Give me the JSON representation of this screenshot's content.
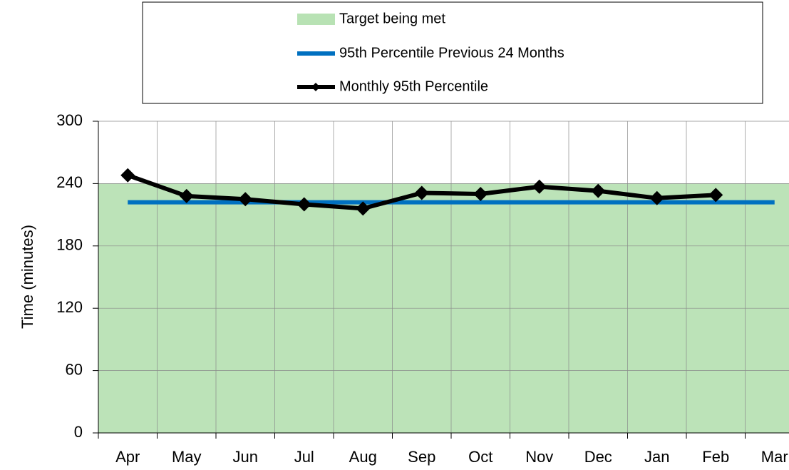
{
  "chart_data": {
    "type": "line",
    "y_label": "Time (minutes)",
    "categories": [
      "Apr",
      "May",
      "Jun",
      "Jul",
      "Aug",
      "Sep",
      "Oct",
      "Nov",
      "Dec",
      "Jan",
      "Feb",
      "Mar"
    ],
    "series": [
      {
        "name": "Target being met",
        "type": "area",
        "color": "#b8e2b4",
        "values": [
          240,
          240,
          240,
          240,
          240,
          240,
          240,
          240,
          240,
          240,
          240,
          240
        ]
      },
      {
        "name": "95th Percentile Previous 24 Months",
        "type": "line",
        "color": "#0070c0",
        "values": [
          222,
          222,
          222,
          222,
          222,
          222,
          222,
          222,
          222,
          222,
          222,
          222
        ]
      },
      {
        "name": "Monthly 95th Percentile",
        "type": "line",
        "color": "#000000",
        "marker": "diamond",
        "values": [
          248,
          228,
          225,
          220,
          216,
          231,
          230,
          237,
          233,
          226,
          229,
          null
        ]
      }
    ],
    "ylim": [
      0,
      300
    ],
    "yticks": [
      0,
      60,
      120,
      180,
      240,
      300
    ],
    "grid": true,
    "legend": "top"
  }
}
